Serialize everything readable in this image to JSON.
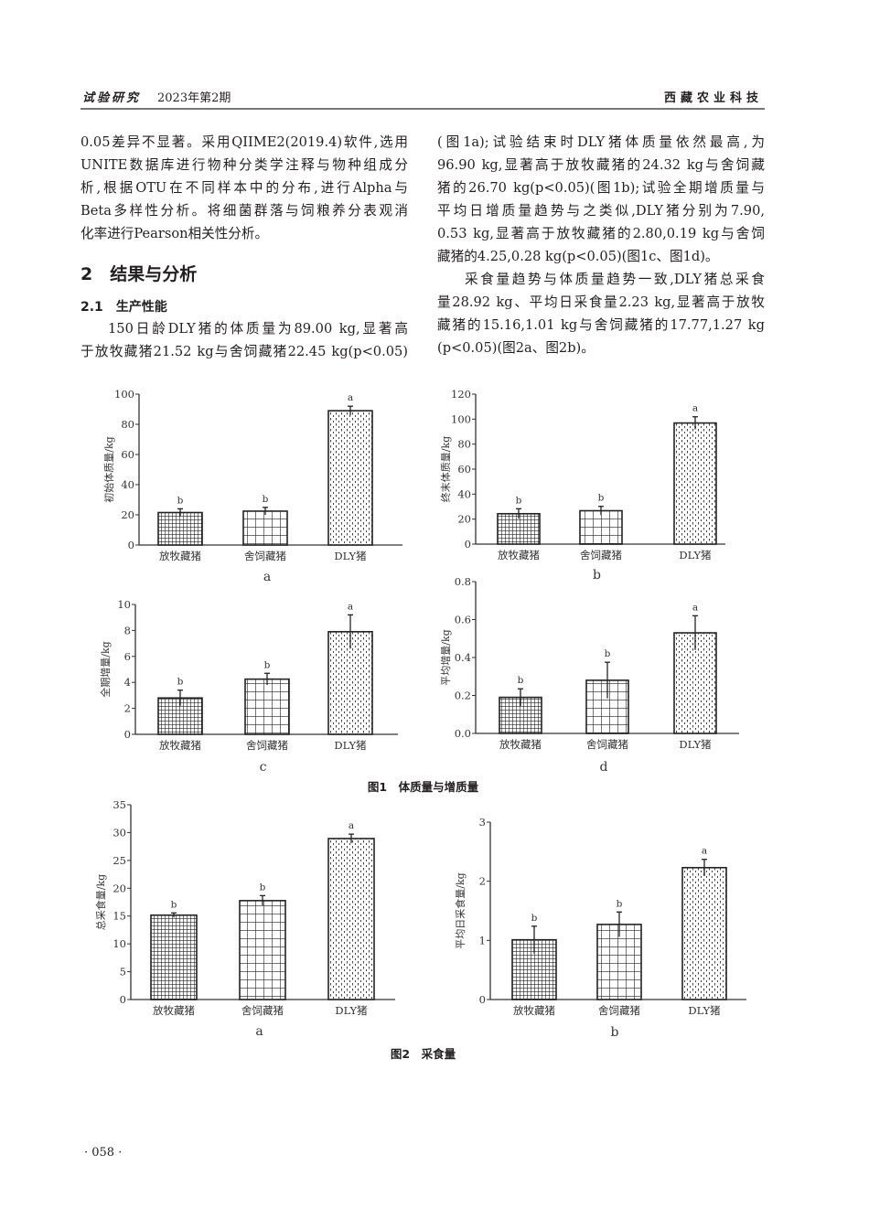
{
  "header": {
    "journal_section": "试验研究",
    "issue": "2023年第2期",
    "journal_name": "西藏农业科技"
  },
  "left_column": {
    "para1": [
      "0.05差异不显著。采用QIIME2(2019.4)软件,选用",
      "UNITE数据库进行物种分类学注释与物种组成分",
      "析,根据OTU在不同样本中的分布,进行Alpha与",
      "Beta多样性分析。将细菌群落与饲粮养分表观消",
      "化率进行Pearson相关性分析。"
    ],
    "section_heading": "2　结果与分析",
    "subsection_heading": "2.1　生产性能",
    "para2": [
      "150日龄DLY猪的体质量为89.00 kg,显著高",
      "于放牧藏猪21.52 kg与舍饲藏猪22.45 kg(p<0.05)"
    ]
  },
  "right_column": {
    "para1": [
      "(图1a);试验结束时DLY猪体质量依然最高,为",
      "96.90 kg,显著高于放牧藏猪的24.32 kg与舍饲藏",
      "猪的26.70 kg(p<0.05)(图1b);试验全期增质量与",
      "平均日增质量趋势与之类似,DLY猪分别为7.90,",
      "0.53 kg,显著高于放牧藏猪的2.80,0.19 kg与舍饲",
      "藏猪的4.25,0.28 kg(p<0.05)(图1c、图1d)。"
    ],
    "para2": [
      "采食量趋势与体质量趋势一致,DLY猪总采食",
      "量28.92 kg、平均日采食量2.23 kg,显著高于放牧",
      "藏猪的15.16,1.01 kg与舍饲藏猪的17.77,1.27 kg",
      "(p<0.05)(图2a、图2b)。"
    ]
  },
  "figure1_caption": "图1　体质量与增质量",
  "figure2_caption": "图2　采食量",
  "page_number": "· 058 ·",
  "chart_data": [
    {
      "type": "bar",
      "panel": "a",
      "figure": "图1",
      "ylabel": "初始体质量/kg",
      "categories": [
        "放牧藏猪",
        "舍饲藏猪",
        "DLY猪"
      ],
      "values": [
        21.52,
        22.45,
        89.0
      ],
      "errors": [
        2.5,
        2.5,
        3
      ],
      "significance": [
        "b",
        "b",
        "a"
      ],
      "ylim": [
        0,
        100
      ],
      "yticks": [
        "0",
        "20",
        "40",
        "60",
        "80",
        "100"
      ],
      "patterns": [
        "fine-grid",
        "coarse-grid",
        "dots"
      ]
    },
    {
      "type": "bar",
      "panel": "b",
      "figure": "图1",
      "ylabel": "终末体质量/kg",
      "categories": [
        "放牧藏猪",
        "舍饲藏猪",
        "DLY猪"
      ],
      "values": [
        24.32,
        26.7,
        96.9
      ],
      "errors": [
        4,
        3.5,
        5
      ],
      "significance": [
        "b",
        "b",
        "a"
      ],
      "ylim": [
        0,
        120
      ],
      "yticks": [
        "0",
        "20",
        "40",
        "60",
        "80",
        "100",
        "120"
      ],
      "patterns": [
        "fine-grid",
        "coarse-grid",
        "dots"
      ]
    },
    {
      "type": "bar",
      "panel": "c",
      "figure": "图1",
      "ylabel": "全期增量/kg",
      "categories": [
        "放牧藏猪",
        "舍饲藏猪",
        "DLY猪"
      ],
      "values": [
        2.8,
        4.25,
        7.9
      ],
      "errors": [
        0.6,
        0.45,
        1.3
      ],
      "significance": [
        "b",
        "b",
        "a"
      ],
      "ylim": [
        0,
        10
      ],
      "yticks": [
        "0",
        "2",
        "4",
        "6",
        "8",
        "10"
      ],
      "patterns": [
        "fine-grid",
        "coarse-grid",
        "dots"
      ]
    },
    {
      "type": "bar",
      "panel": "d",
      "figure": "图1",
      "ylabel": "平均增量/kg",
      "categories": [
        "放牧藏猪",
        "舍饲藏猪",
        "DLY猪"
      ],
      "values": [
        0.19,
        0.28,
        0.53
      ],
      "errors": [
        0.045,
        0.095,
        0.09
      ],
      "significance": [
        "b",
        "b",
        "a"
      ],
      "ylim": [
        0,
        0.8
      ],
      "yticks": [
        "0.0",
        "0.2",
        "0.4",
        "0.6",
        "0.8"
      ],
      "patterns": [
        "fine-grid",
        "coarse-grid",
        "dots"
      ]
    },
    {
      "type": "bar",
      "panel": "a",
      "figure": "图2",
      "ylabel": "总采食量/kg",
      "categories": [
        "放牧藏猪",
        "舍饲藏猪",
        "DLY猪"
      ],
      "values": [
        15.16,
        17.77,
        28.92
      ],
      "errors": [
        0.4,
        0.9,
        0.8
      ],
      "significance": [
        "b",
        "b",
        "a"
      ],
      "ylim": [
        0,
        35
      ],
      "yticks": [
        "0",
        "5",
        "10",
        "15",
        "20",
        "25",
        "30",
        "35"
      ],
      "patterns": [
        "fine-grid",
        "coarse-grid",
        "dots"
      ]
    },
    {
      "type": "bar",
      "panel": "b",
      "figure": "图2",
      "ylabel": "平均日采食量/kg",
      "categories": [
        "放牧藏猪",
        "舍饲藏猪",
        "DLY猪"
      ],
      "values": [
        1.01,
        1.27,
        2.23
      ],
      "errors": [
        0.23,
        0.21,
        0.14
      ],
      "significance": [
        "b",
        "b",
        "a"
      ],
      "ylim": [
        0,
        3
      ],
      "yticks": [
        "0",
        "1",
        "2",
        "3"
      ],
      "patterns": [
        "fine-grid",
        "coarse-grid",
        "dots"
      ]
    }
  ]
}
